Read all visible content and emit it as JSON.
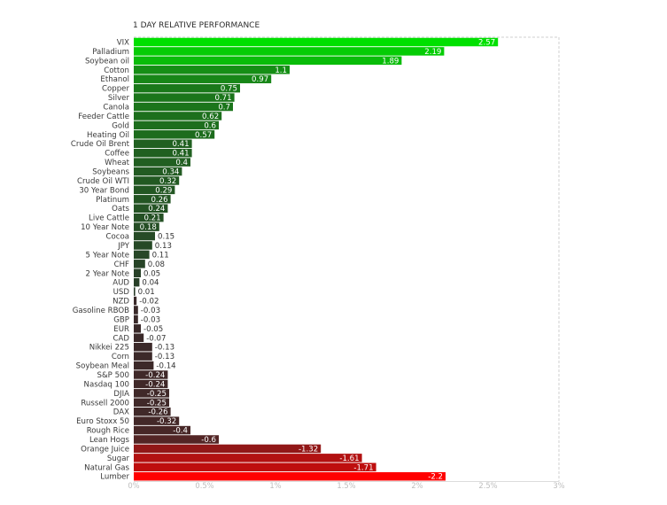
{
  "chart_data": {
    "type": "bar",
    "orientation": "horizontal",
    "title": "1 DAY RELATIVE PERFORMANCE",
    "xlabel": "",
    "ylabel": "",
    "xlim": [
      0,
      3
    ],
    "x_ticks": [
      0,
      0.5,
      1,
      1.5,
      2,
      2.5,
      3
    ],
    "x_tick_labels": [
      "0%",
      "0.5%",
      "1%",
      "1.5%",
      "2%",
      "2.5%",
      "3%"
    ],
    "grid": "dashed top and right border",
    "bar_length": "absolute value of change",
    "colors": {
      "positive_strong": "#00e000",
      "positive_weak": "#2a3a2a",
      "negative_weak": "#3a2a2a",
      "negative_strong": "#ff0000"
    },
    "categories": [
      "VIX",
      "Palladium",
      "Soybean oil",
      "Cotton",
      "Ethanol",
      "Copper",
      "Silver",
      "Canola",
      "Feeder Cattle",
      "Gold",
      "Heating Oil",
      "Crude Oil Brent",
      "Coffee",
      "Wheat",
      "Soybeans",
      "Crude Oil WTI",
      "30 Year Bond",
      "Platinum",
      "Oats",
      "Live Cattle",
      "10 Year Note",
      "Cocoa",
      "JPY",
      "5 Year Note",
      "CHF",
      "2 Year Note",
      "AUD",
      "USD",
      "NZD",
      "Gasoline RBOB",
      "GBP",
      "EUR",
      "CAD",
      "Nikkei 225",
      "Corn",
      "Soybean Meal",
      "S&P 500",
      "Nasdaq 100",
      "DJIA",
      "Russell 2000",
      "DAX",
      "Euro Stoxx 50",
      "Rough Rice",
      "Lean Hogs",
      "Orange Juice",
      "Sugar",
      "Natural Gas",
      "Lumber"
    ],
    "values": [
      2.57,
      2.19,
      1.89,
      1.1,
      0.97,
      0.75,
      0.71,
      0.7,
      0.62,
      0.6,
      0.57,
      0.41,
      0.41,
      0.4,
      0.34,
      0.32,
      0.29,
      0.26,
      0.24,
      0.21,
      0.18,
      0.15,
      0.13,
      0.11,
      0.08,
      0.05,
      0.04,
      0.01,
      -0.02,
      -0.03,
      -0.03,
      -0.05,
      -0.07,
      -0.13,
      -0.13,
      -0.14,
      -0.24,
      -0.24,
      -0.25,
      -0.25,
      -0.26,
      -0.32,
      -0.4,
      -0.6,
      -1.32,
      -1.61,
      -1.71,
      -2.2
    ],
    "value_labels": [
      "2.57",
      "2.19",
      "1.89",
      "1.1",
      "0.97",
      "0.75",
      "0.71",
      "0.7",
      "0.62",
      "0.6",
      "0.57",
      "0.41",
      "0.41",
      "0.4",
      "0.34",
      "0.32",
      "0.29",
      "0.26",
      "0.24",
      "0.21",
      "0.18",
      "0.15",
      "0.13",
      "0.11",
      "0.08",
      "0.05",
      "0.04",
      "0.01",
      "-0.02",
      "-0.03",
      "-0.03",
      "-0.05",
      "-0.07",
      "-0.13",
      "-0.13",
      "-0.14",
      "-0.24",
      "-0.24",
      "-0.25",
      "-0.25",
      "-0.26",
      "-0.32",
      "-0.4",
      "-0.6",
      "-1.32",
      "-1.61",
      "-1.71",
      "-2.2"
    ]
  }
}
